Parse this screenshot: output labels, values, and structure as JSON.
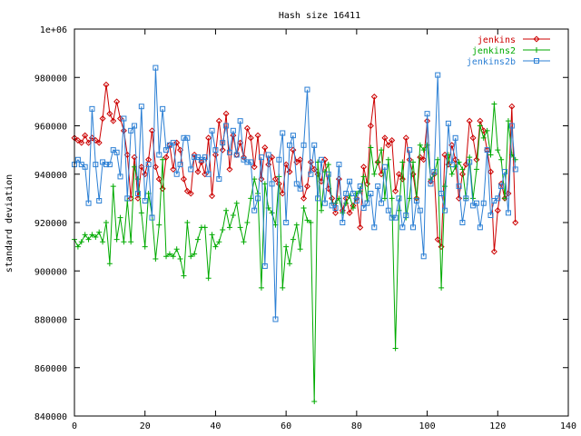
{
  "chart_data": {
    "type": "line",
    "title": "Hash size 16411",
    "xlabel": "",
    "ylabel": "standard deviation",
    "xlim": [
      0,
      140
    ],
    "ylim": [
      840000,
      1000000
    ],
    "x_ticks": [
      0,
      20,
      40,
      60,
      80,
      100,
      120,
      140
    ],
    "x_tick_labels": [
      "0",
      "20",
      "40",
      "60",
      "80",
      "100",
      "120",
      "140"
    ],
    "y_ticks": [
      840000,
      860000,
      880000,
      900000,
      920000,
      940000,
      960000,
      980000,
      1000000
    ],
    "y_tick_labels": [
      "840000",
      "860000",
      "880000",
      "900000",
      "920000",
      "940000",
      "960000",
      "980000",
      "1e+06"
    ],
    "grid": false,
    "legend_position": "top-right",
    "series": [
      {
        "name": "jenkins",
        "color": "#cc0000",
        "marker": "diamond",
        "x": [
          0,
          1,
          2,
          3,
          4,
          5,
          6,
          7,
          8,
          9,
          10,
          11,
          12,
          13,
          14,
          15,
          16,
          17,
          18,
          19,
          20,
          21,
          22,
          23,
          24,
          25,
          26,
          27,
          28,
          29,
          30,
          31,
          32,
          33,
          34,
          35,
          36,
          37,
          38,
          39,
          40,
          41,
          42,
          43,
          44,
          45,
          46,
          47,
          48,
          49,
          50,
          51,
          52,
          53,
          54,
          55,
          56,
          57,
          58,
          59,
          60,
          61,
          62,
          63,
          64,
          65,
          66,
          67,
          68,
          69,
          70,
          71,
          72,
          73,
          74,
          75,
          76,
          77,
          78,
          79,
          80,
          81,
          82,
          83,
          84,
          85,
          86,
          87,
          88,
          89,
          90,
          91,
          92,
          93,
          94,
          95,
          96,
          97,
          98,
          99,
          100,
          101,
          102,
          103,
          104,
          105,
          106,
          107,
          108,
          109,
          110,
          111,
          112,
          113,
          114,
          115,
          116,
          117,
          118,
          119,
          120,
          121,
          122,
          123,
          124,
          125
        ],
        "values": [
          955000,
          954000,
          953000,
          956000,
          953000,
          955000,
          954000,
          953000,
          963000,
          977000,
          965000,
          962000,
          970000,
          963000,
          958000,
          948000,
          930000,
          947000,
          930000,
          943000,
          940000,
          946000,
          958000,
          943000,
          938000,
          934000,
          947000,
          952000,
          942000,
          953000,
          950000,
          938000,
          933000,
          932000,
          948000,
          941000,
          945000,
          940000,
          955000,
          931000,
          948000,
          962000,
          950000,
          965000,
          942000,
          956000,
          948000,
          953000,
          947000,
          959000,
          955000,
          943000,
          956000,
          938000,
          951000,
          944000,
          947000,
          938000,
          936000,
          932000,
          944000,
          941000,
          950000,
          945000,
          946000,
          930000,
          935000,
          945000,
          942000,
          940000,
          937000,
          946000,
          934000,
          930000,
          924000,
          938000,
          925000,
          930000,
          924000,
          927000,
          930000,
          918000,
          943000,
          936000,
          960000,
          972000,
          945000,
          940000,
          955000,
          952000,
          954000,
          933000,
          940000,
          938000,
          955000,
          946000,
          940000,
          930000,
          947000,
          946000,
          962000,
          937000,
          940000,
          913000,
          910000,
          948000,
          944000,
          952000,
          946000,
          930000,
          940000,
          944000,
          962000,
          955000,
          946000,
          962000,
          958000,
          950000,
          941000,
          908000,
          925000,
          936000,
          930000,
          932000,
          968000,
          920000
        ]
      },
      {
        "name": "jenkins2",
        "color": "#00aa00",
        "marker": "plus",
        "x": [
          0,
          1,
          2,
          3,
          4,
          5,
          6,
          7,
          8,
          9,
          10,
          11,
          12,
          13,
          14,
          15,
          16,
          17,
          18,
          19,
          20,
          21,
          22,
          23,
          24,
          25,
          26,
          27,
          28,
          29,
          30,
          31,
          32,
          33,
          34,
          35,
          36,
          37,
          38,
          39,
          40,
          41,
          42,
          43,
          44,
          45,
          46,
          47,
          48,
          49,
          50,
          51,
          52,
          53,
          54,
          55,
          56,
          57,
          58,
          59,
          60,
          61,
          62,
          63,
          64,
          65,
          66,
          67,
          68,
          69,
          70,
          71,
          72,
          73,
          74,
          75,
          76,
          77,
          78,
          79,
          80,
          81,
          82,
          83,
          84,
          85,
          86,
          87,
          88,
          89,
          90,
          91,
          92,
          93,
          94,
          95,
          96,
          97,
          98,
          99,
          100,
          101,
          102,
          103,
          104,
          105,
          106,
          107,
          108,
          109,
          110,
          111,
          112,
          113,
          114,
          115,
          116,
          117,
          118,
          119,
          120,
          121,
          122,
          123,
          124,
          125
        ],
        "values": [
          913000,
          910000,
          912000,
          915000,
          913000,
          915000,
          914000,
          916000,
          912000,
          920000,
          903000,
          935000,
          913000,
          922000,
          912000,
          929000,
          912000,
          943000,
          938000,
          924000,
          910000,
          932000,
          923000,
          905000,
          919000,
          946000,
          906000,
          907000,
          906000,
          909000,
          905000,
          898000,
          920000,
          906000,
          907000,
          913000,
          918000,
          918000,
          897000,
          915000,
          910000,
          912000,
          917000,
          925000,
          918000,
          923000,
          928000,
          918000,
          912000,
          920000,
          930000,
          938000,
          932000,
          893000,
          936000,
          926000,
          924000,
          919000,
          939000,
          893000,
          910000,
          903000,
          913000,
          919000,
          909000,
          926000,
          921000,
          920000,
          846000,
          945000,
          925000,
          941000,
          944000,
          928000,
          928000,
          930000,
          924000,
          928000,
          931000,
          926000,
          932000,
          933000,
          939000,
          929000,
          951000,
          940000,
          945000,
          950000,
          930000,
          946000,
          930000,
          868000,
          925000,
          945000,
          922000,
          930000,
          945000,
          930000,
          952000,
          950000,
          952000,
          938000,
          940000,
          946000,
          893000,
          935000,
          948000,
          940000,
          943000,
          945000,
          942000,
          930000,
          947000,
          930000,
          942000,
          960000,
          955000,
          958000,
          948000,
          969000,
          950000,
          946000,
          930000,
          962000,
          948000,
          946000
        ]
      },
      {
        "name": "jenkins2b",
        "color": "#2b7fd4",
        "marker": "square",
        "x": [
          0,
          1,
          2,
          3,
          4,
          5,
          6,
          7,
          8,
          9,
          10,
          11,
          12,
          13,
          14,
          15,
          16,
          17,
          18,
          19,
          20,
          21,
          22,
          23,
          24,
          25,
          26,
          27,
          28,
          29,
          30,
          31,
          32,
          33,
          34,
          35,
          36,
          37,
          38,
          39,
          40,
          41,
          42,
          43,
          44,
          45,
          46,
          47,
          48,
          49,
          50,
          51,
          52,
          53,
          54,
          55,
          56,
          57,
          58,
          59,
          60,
          61,
          62,
          63,
          64,
          65,
          66,
          67,
          68,
          69,
          70,
          71,
          72,
          73,
          74,
          75,
          76,
          77,
          78,
          79,
          80,
          81,
          82,
          83,
          84,
          85,
          86,
          87,
          88,
          89,
          90,
          91,
          92,
          93,
          94,
          95,
          96,
          97,
          98,
          99,
          100,
          101,
          102,
          103,
          104,
          105,
          106,
          107,
          108,
          109,
          110,
          111,
          112,
          113,
          114,
          115,
          116,
          117,
          118,
          119,
          120,
          121,
          122,
          123,
          124,
          125
        ],
        "values": [
          944000,
          946000,
          944000,
          943000,
          928000,
          967000,
          944000,
          929000,
          945000,
          944000,
          944000,
          950000,
          949000,
          939000,
          963000,
          930000,
          958000,
          960000,
          932000,
          968000,
          929000,
          944000,
          922000,
          984000,
          948000,
          967000,
          950000,
          952000,
          953000,
          940000,
          944000,
          955000,
          955000,
          942000,
          947000,
          947000,
          946000,
          947000,
          940000,
          958000,
          950000,
          938000,
          953000,
          960000,
          949000,
          958000,
          948000,
          962000,
          946000,
          945000,
          945000,
          925000,
          930000,
          947000,
          902000,
          948000,
          936000,
          880000,
          946000,
          957000,
          920000,
          952000,
          956000,
          936000,
          934000,
          952000,
          975000,
          940000,
          952000,
          930000,
          946000,
          928000,
          940000,
          927000,
          926000,
          944000,
          920000,
          932000,
          937000,
          932000,
          929000,
          935000,
          926000,
          928000,
          932000,
          918000,
          935000,
          928000,
          943000,
          925000,
          922000,
          922000,
          930000,
          918000,
          923000,
          950000,
          918000,
          929000,
          925000,
          906000,
          965000,
          936000,
          941000,
          981000,
          932000,
          925000,
          961000,
          944000,
          955000,
          935000,
          920000,
          930000,
          945000,
          927000,
          928000,
          918000,
          928000,
          950000,
          923000,
          929000,
          930000,
          935000,
          941000,
          924000,
          960000,
          942000
        ]
      }
    ]
  }
}
